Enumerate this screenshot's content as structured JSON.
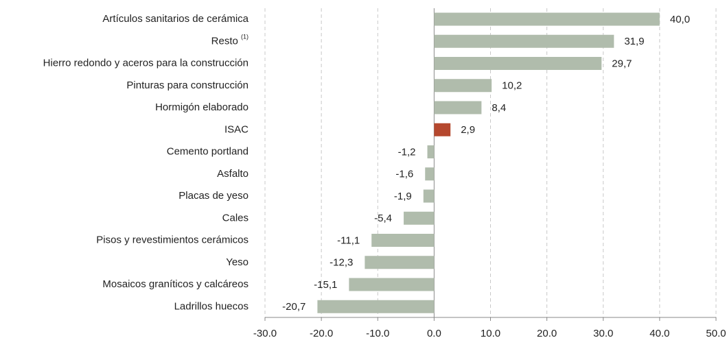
{
  "chart_data": {
    "type": "bar",
    "orientation": "horizontal",
    "categories": [
      "Artículos sanitarios de cerámica",
      "Resto",
      "Hierro redondo y aceros para la construcción",
      "Pinturas para construcción",
      "Hormigón elaborado",
      "ISAC",
      "Cemento portland",
      "Asfalto",
      "Placas de yeso",
      "Cales",
      "Pisos y revestimientos cerámicos",
      "Yeso",
      "Mosaicos graníticos y calcáreos",
      "Ladrillos huecos"
    ],
    "category_notes": [
      null,
      "(1)",
      null,
      null,
      null,
      null,
      null,
      null,
      null,
      null,
      null,
      null,
      null,
      null
    ],
    "values": [
      40.0,
      31.9,
      29.7,
      10.2,
      8.4,
      2.9,
      -1.2,
      -1.6,
      -1.9,
      -5.4,
      -11.1,
      -12.3,
      -15.1,
      -20.7
    ],
    "value_labels": [
      "40,0",
      "31,9",
      "29,7",
      "10,2",
      "8,4",
      "2,9",
      "-1,2",
      "-1,6",
      "-1,9",
      "-5,4",
      "-11,1",
      "-12,3",
      "-15,1",
      "-20,7"
    ],
    "colors": [
      "#b0bcac",
      "#b0bcac",
      "#b0bcac",
      "#b0bcac",
      "#b0bcac",
      "#b5482e",
      "#b0bcac",
      "#b0bcac",
      "#b0bcac",
      "#b0bcac",
      "#b0bcac",
      "#b0bcac",
      "#b0bcac",
      "#b0bcac"
    ],
    "xlim": [
      -30,
      50
    ],
    "xticks": [
      {
        "value": -30,
        "label": "-30.0"
      },
      {
        "value": -20,
        "label": "-20.0"
      },
      {
        "value": -10,
        "label": "-10.0"
      },
      {
        "value": 0,
        "label": "0.0"
      },
      {
        "value": 10,
        "label": "10.0"
      },
      {
        "value": 20,
        "label": "20.0"
      },
      {
        "value": 30,
        "label": "30.0"
      },
      {
        "value": 40,
        "label": "40.0"
      },
      {
        "value": 50,
        "label": "50.0"
      }
    ],
    "grid": true
  }
}
